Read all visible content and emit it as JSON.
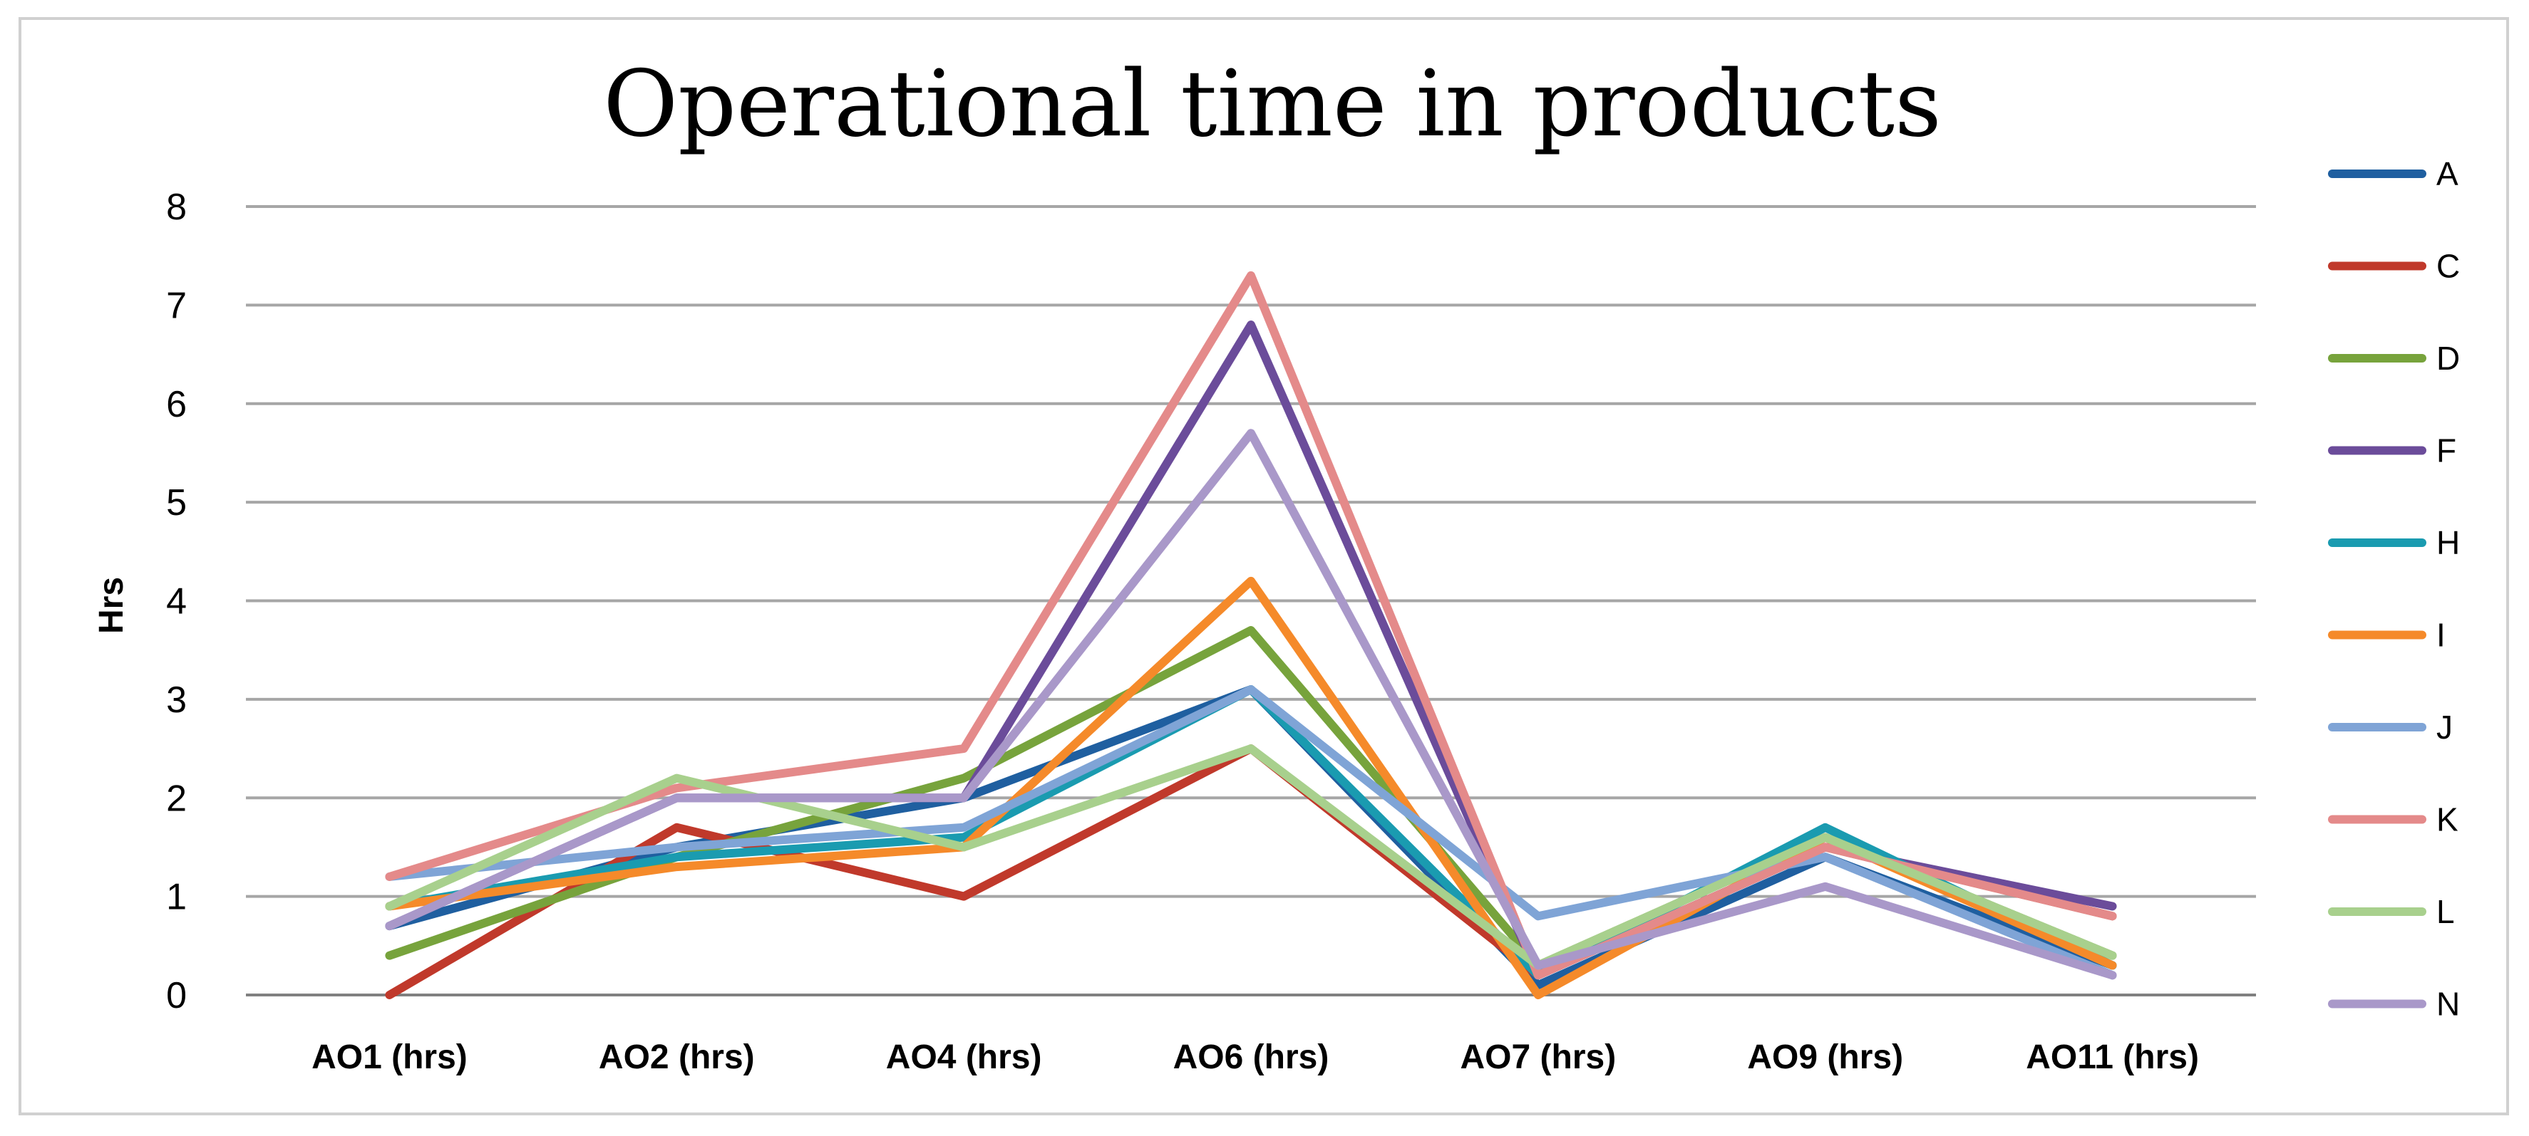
{
  "chart_data": {
    "type": "line",
    "title": "Operational time in products",
    "xlabel": "",
    "ylabel": "Hrs",
    "ylim": [
      0,
      8
    ],
    "yticks": [
      "0",
      "1",
      "2",
      "3",
      "4",
      "5",
      "6",
      "7",
      "8"
    ],
    "grid": true,
    "legend_position": "right",
    "categories": [
      "AO1 (hrs)",
      "AO2 (hrs)",
      "AO4 (hrs)",
      "AO6 (hrs)",
      "AO7 (hrs)",
      "AO9 (hrs)",
      "AO11 (hrs)"
    ],
    "series": [
      {
        "name": "A",
        "color": "#1f5fa0",
        "values": [
          0.7,
          1.5,
          2.0,
          3.1,
          0.1,
          1.4,
          0.3
        ]
      },
      {
        "name": "C",
        "color": "#c0392b",
        "values": [
          0.0,
          1.7,
          1.0,
          2.5,
          0.2,
          1.5,
          0.8
        ]
      },
      {
        "name": "D",
        "color": "#77a33c",
        "values": [
          0.4,
          1.4,
          2.2,
          3.7,
          0.3,
          1.6,
          0.4
        ]
      },
      {
        "name": "F",
        "color": "#6b4c9a",
        "values": [
          0.7,
          2.0,
          2.0,
          6.8,
          0.2,
          1.5,
          0.9
        ]
      },
      {
        "name": "H",
        "color": "#1a9bb0",
        "values": [
          0.9,
          1.4,
          1.6,
          3.1,
          0.2,
          1.7,
          0.3
        ]
      },
      {
        "name": "I",
        "color": "#f58a2a",
        "values": [
          0.9,
          1.3,
          1.5,
          4.2,
          0.0,
          1.6,
          0.3
        ]
      },
      {
        "name": "J",
        "color": "#7fa4d6",
        "values": [
          1.2,
          1.5,
          1.7,
          3.1,
          0.8,
          1.4,
          0.2
        ]
      },
      {
        "name": "K",
        "color": "#e48a8a",
        "values": [
          1.2,
          2.1,
          2.5,
          7.3,
          0.2,
          1.5,
          0.8
        ]
      },
      {
        "name": "L",
        "color": "#a8d08d",
        "values": [
          0.9,
          2.2,
          1.5,
          2.5,
          0.3,
          1.6,
          0.4
        ]
      },
      {
        "name": "N",
        "color": "#a998c9",
        "values": [
          0.7,
          2.0,
          2.0,
          5.7,
          0.3,
          1.1,
          0.2
        ]
      }
    ]
  }
}
